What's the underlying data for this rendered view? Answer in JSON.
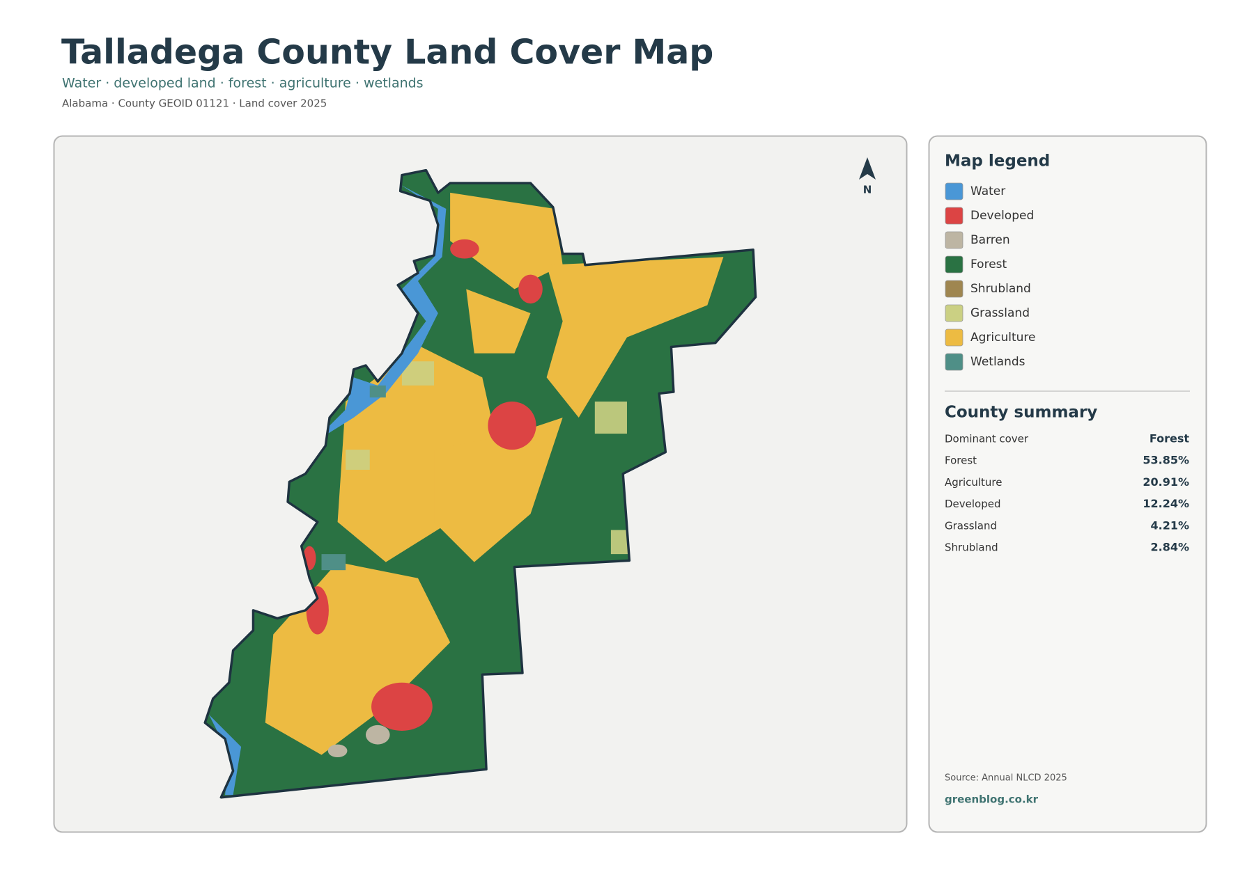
{
  "header": {
    "title": "Talladega County Land Cover Map",
    "subtitle": "Water · developed land · forest · agriculture · wetlands",
    "meta": "Alabama · County GEOID 01121 · Land cover 2025"
  },
  "map": {
    "north": "N"
  },
  "legend": {
    "title": "Map legend",
    "items": [
      {
        "label": "Water",
        "color": "#4a97d6"
      },
      {
        "label": "Developed",
        "color": "#dc4444"
      },
      {
        "label": "Barren",
        "color": "#bdb5a3"
      },
      {
        "label": "Forest",
        "color": "#2a7243"
      },
      {
        "label": "Shrubland",
        "color": "#9f8650"
      },
      {
        "label": "Grassland",
        "color": "#cbd083"
      },
      {
        "label": "Agriculture",
        "color": "#edbb42"
      },
      {
        "label": "Wetlands",
        "color": "#4f8f87"
      }
    ]
  },
  "summary": {
    "title": "County summary",
    "rows": [
      [
        "Dominant cover",
        "Forest"
      ],
      [
        "Forest",
        "53.85%"
      ],
      [
        "Agriculture",
        "20.91%"
      ],
      [
        "Developed",
        "12.24%"
      ],
      [
        "Grassland",
        "4.21%"
      ],
      [
        "Shrubland",
        "2.84%"
      ]
    ]
  },
  "footer": {
    "source": "Source: Annual NLCD 2025",
    "site": "greenblog.co.kr"
  }
}
